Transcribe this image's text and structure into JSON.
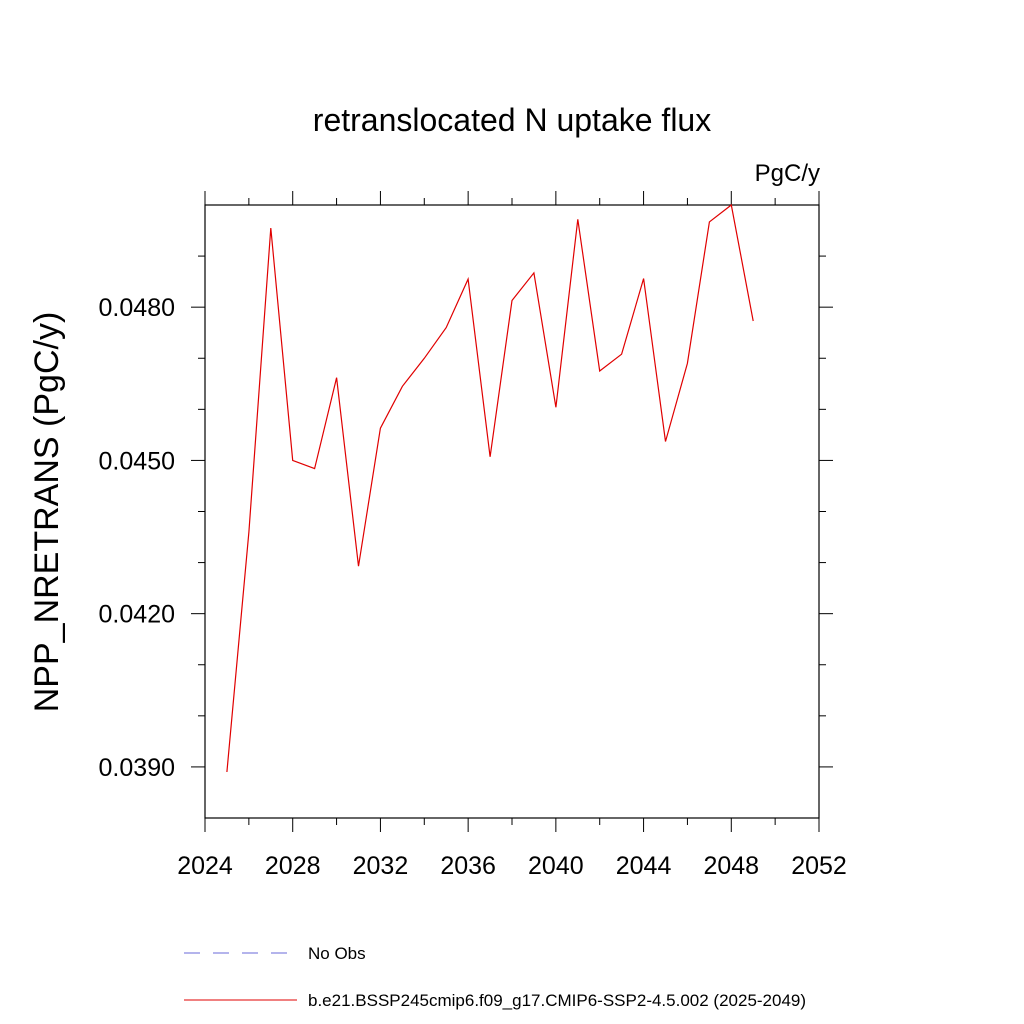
{
  "chart_data": {
    "type": "line",
    "title": "retranslocated N uptake flux",
    "units_label": "PgC/y",
    "ylabel": "NPP_NRETRANS  (PgC/y)",
    "xlabel": "",
    "xlim": [
      2024,
      2052
    ],
    "ylim": [
      0.038,
      0.05
    ],
    "x_ticks": [
      2024,
      2028,
      2032,
      2036,
      2040,
      2044,
      2048,
      2052
    ],
    "x_tick_labels": [
      "2024",
      "2028",
      "2032",
      "2036",
      "2040",
      "2044",
      "2048",
      "2052"
    ],
    "y_ticks": [
      0.039,
      0.042,
      0.045,
      0.048
    ],
    "y_tick_labels": [
      "0.0390",
      "0.0420",
      "0.0450",
      "0.0480"
    ],
    "series": [
      {
        "name": "b.e21.BSSP245cmip6.f09_g17.CMIP6-SSP2-4.5.002 (2025-2049)",
        "color": "#e00000",
        "x": [
          2025,
          2026,
          2027,
          2028,
          2029,
          2030,
          2031,
          2032,
          2033,
          2034,
          2035,
          2036,
          2037,
          2038,
          2039,
          2040,
          2041,
          2042,
          2043,
          2044,
          2045,
          2046,
          2047,
          2048,
          2049
        ],
        "values": [
          0.0389,
          0.0436,
          0.04955,
          0.045,
          0.04484,
          0.04662,
          0.04293,
          0.04563,
          0.04645,
          0.047,
          0.0476,
          0.04855,
          0.04507,
          0.04813,
          0.04867,
          0.04604,
          0.04972,
          0.04675,
          0.04708,
          0.04856,
          0.04537,
          0.0469,
          0.04967,
          0.05,
          0.04773
        ]
      }
    ],
    "legend": [
      {
        "label": "No Obs",
        "style": "dashed",
        "color": "#6a6ad8"
      },
      {
        "label": "b.e21.BSSP245cmip6.f09_g17.CMIP6-SSP2-4.5.002 (2025-2049)",
        "style": "solid",
        "color": "#e00000"
      }
    ]
  }
}
